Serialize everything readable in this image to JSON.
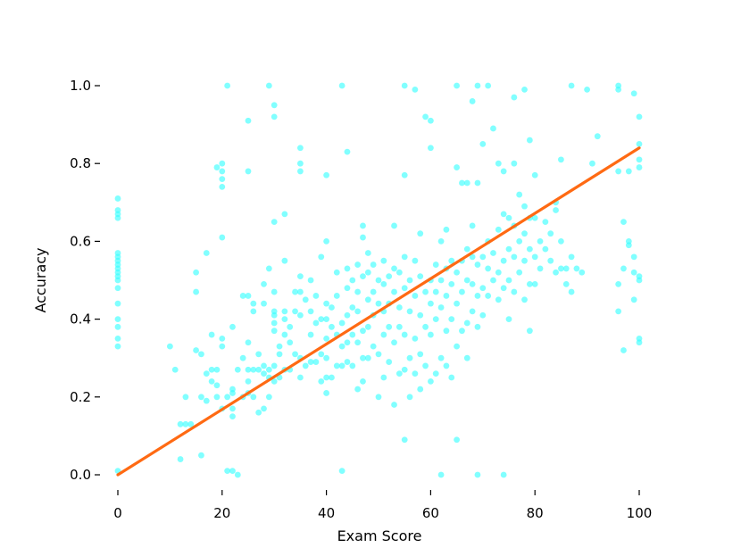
{
  "chart_data": {
    "type": "scatter",
    "xlabel": "Exam Score",
    "ylabel": "Accuracy",
    "xlim": [
      -3,
      103
    ],
    "ylim": [
      -0.05,
      1.05
    ],
    "xticks": [
      0,
      20,
      40,
      60,
      80,
      100
    ],
    "yticks": [
      0.0,
      0.2,
      0.4,
      0.6,
      0.8,
      1.0
    ],
    "xtick_labels": [
      "0",
      "20",
      "40",
      "60",
      "80",
      "100"
    ],
    "ytick_labels": [
      "0.0",
      "0.2",
      "0.4",
      "0.6",
      "0.8",
      "1.0"
    ],
    "grid": false,
    "point_color": "#33ffff",
    "line_color": "#ff6a13",
    "trend_line": {
      "x": [
        0,
        100
      ],
      "y": [
        0.0,
        0.84
      ]
    },
    "points": [
      [
        0,
        0.01
      ],
      [
        0,
        0.33
      ],
      [
        0,
        0.35
      ],
      [
        0,
        0.38
      ],
      [
        0,
        0.4
      ],
      [
        0,
        0.44
      ],
      [
        0,
        0.48
      ],
      [
        0,
        0.5
      ],
      [
        0,
        0.51
      ],
      [
        0,
        0.52
      ],
      [
        0,
        0.53
      ],
      [
        0,
        0.54
      ],
      [
        0,
        0.55
      ],
      [
        0,
        0.56
      ],
      [
        0,
        0.57
      ],
      [
        0,
        0.66
      ],
      [
        0,
        0.67
      ],
      [
        0,
        0.68
      ],
      [
        0,
        0.71
      ],
      [
        10,
        0.33
      ],
      [
        11,
        0.27
      ],
      [
        12,
        0.04
      ],
      [
        12,
        0.13
      ],
      [
        13,
        0.13
      ],
      [
        13,
        0.2
      ],
      [
        14,
        0.13
      ],
      [
        15,
        0.32
      ],
      [
        15,
        0.47
      ],
      [
        15,
        0.52
      ],
      [
        16,
        0.05
      ],
      [
        16,
        0.2
      ],
      [
        16,
        0.31
      ],
      [
        17,
        0.19
      ],
      [
        17,
        0.26
      ],
      [
        17,
        0.57
      ],
      [
        18,
        0.24
      ],
      [
        18,
        0.27
      ],
      [
        18,
        0.36
      ],
      [
        19,
        0.2
      ],
      [
        19,
        0.23
      ],
      [
        19,
        0.27
      ],
      [
        19,
        0.79
      ],
      [
        20,
        0.17
      ],
      [
        20,
        0.33
      ],
      [
        20,
        0.35
      ],
      [
        20,
        0.61
      ],
      [
        20,
        0.74
      ],
      [
        20,
        0.76
      ],
      [
        20,
        0.78
      ],
      [
        20,
        0.8
      ],
      [
        21,
        0.01
      ],
      [
        21,
        0.2
      ],
      [
        21,
        1.0
      ],
      [
        22,
        0.15
      ],
      [
        22,
        0.17
      ],
      [
        22,
        0.21
      ],
      [
        22,
        0.22
      ],
      [
        22,
        0.38
      ],
      [
        22,
        0.01
      ],
      [
        23,
        0.0
      ],
      [
        23,
        0.27
      ],
      [
        24,
        0.2
      ],
      [
        24,
        0.3
      ],
      [
        24,
        0.46
      ],
      [
        25,
        0.21
      ],
      [
        25,
        0.24
      ],
      [
        25,
        0.27
      ],
      [
        25,
        0.34
      ],
      [
        25,
        0.46
      ],
      [
        25,
        0.78
      ],
      [
        25,
        0.91
      ],
      [
        26,
        0.2
      ],
      [
        26,
        0.27
      ],
      [
        26,
        0.42
      ],
      [
        26,
        0.44
      ],
      [
        27,
        0.16
      ],
      [
        27,
        0.27
      ],
      [
        27,
        0.31
      ],
      [
        28,
        0.17
      ],
      [
        28,
        0.26
      ],
      [
        28,
        0.28
      ],
      [
        28,
        0.44
      ],
      [
        28,
        0.49
      ],
      [
        29,
        0.2
      ],
      [
        29,
        0.25
      ],
      [
        29,
        0.27
      ],
      [
        29,
        0.53
      ],
      [
        29,
        1.0
      ],
      [
        30,
        0.24
      ],
      [
        30,
        0.28
      ],
      [
        30,
        0.37
      ],
      [
        30,
        0.39
      ],
      [
        30,
        0.41
      ],
      [
        30,
        0.42
      ],
      [
        30,
        0.47
      ],
      [
        30,
        0.65
      ],
      [
        30,
        0.92
      ],
      [
        30,
        0.95
      ],
      [
        31,
        0.25
      ],
      [
        31,
        0.31
      ],
      [
        31,
        0.33
      ],
      [
        32,
        0.27
      ],
      [
        32,
        0.36
      ],
      [
        32,
        0.4
      ],
      [
        32,
        0.42
      ],
      [
        32,
        0.55
      ],
      [
        32,
        0.67
      ],
      [
        33,
        0.27
      ],
      [
        33,
        0.34
      ],
      [
        33,
        0.38
      ],
      [
        34,
        0.31
      ],
      [
        34,
        0.42
      ],
      [
        34,
        0.47
      ],
      [
        35,
        0.25
      ],
      [
        35,
        0.3
      ],
      [
        35,
        0.41
      ],
      [
        35,
        0.47
      ],
      [
        35,
        0.51
      ],
      [
        35,
        0.78
      ],
      [
        35,
        0.8
      ],
      [
        35,
        0.84
      ],
      [
        36,
        0.28
      ],
      [
        36,
        0.45
      ],
      [
        37,
        0.29
      ],
      [
        37,
        0.36
      ],
      [
        37,
        0.42
      ],
      [
        37,
        0.5
      ],
      [
        38,
        0.29
      ],
      [
        38,
        0.39
      ],
      [
        38,
        0.46
      ],
      [
        39,
        0.24
      ],
      [
        39,
        0.31
      ],
      [
        39,
        0.4
      ],
      [
        39,
        0.56
      ],
      [
        40,
        0.21
      ],
      [
        40,
        0.25
      ],
      [
        40,
        0.3
      ],
      [
        40,
        0.35
      ],
      [
        40,
        0.4
      ],
      [
        40,
        0.44
      ],
      [
        40,
        0.6
      ],
      [
        40,
        0.77
      ],
      [
        41,
        0.25
      ],
      [
        41,
        0.38
      ],
      [
        41,
        0.43
      ],
      [
        42,
        0.28
      ],
      [
        42,
        0.36
      ],
      [
        42,
        0.46
      ],
      [
        42,
        0.52
      ],
      [
        43,
        0.01
      ],
      [
        43,
        0.28
      ],
      [
        43,
        0.33
      ],
      [
        43,
        0.39
      ],
      [
        43,
        1.0
      ],
      [
        44,
        0.29
      ],
      [
        44,
        0.34
      ],
      [
        44,
        0.41
      ],
      [
        44,
        0.48
      ],
      [
        44,
        0.53
      ],
      [
        44,
        0.83
      ],
      [
        45,
        0.28
      ],
      [
        45,
        0.36
      ],
      [
        45,
        0.43
      ],
      [
        45,
        0.5
      ],
      [
        46,
        0.22
      ],
      [
        46,
        0.34
      ],
      [
        46,
        0.42
      ],
      [
        46,
        0.47
      ],
      [
        46,
        0.54
      ],
      [
        47,
        0.24
      ],
      [
        47,
        0.3
      ],
      [
        47,
        0.37
      ],
      [
        47,
        0.51
      ],
      [
        47,
        0.61
      ],
      [
        47,
        0.64
      ],
      [
        48,
        0.3
      ],
      [
        48,
        0.38
      ],
      [
        48,
        0.45
      ],
      [
        48,
        0.52
      ],
      [
        48,
        0.57
      ],
      [
        49,
        0.33
      ],
      [
        49,
        0.41
      ],
      [
        49,
        0.47
      ],
      [
        49,
        0.54
      ],
      [
        50,
        0.2
      ],
      [
        50,
        0.31
      ],
      [
        50,
        0.44
      ],
      [
        50,
        0.5
      ],
      [
        51,
        0.25
      ],
      [
        51,
        0.36
      ],
      [
        51,
        0.42
      ],
      [
        51,
        0.49
      ],
      [
        51,
        0.55
      ],
      [
        52,
        0.29
      ],
      [
        52,
        0.38
      ],
      [
        52,
        0.44
      ],
      [
        52,
        0.51
      ],
      [
        53,
        0.18
      ],
      [
        53,
        0.34
      ],
      [
        53,
        0.47
      ],
      [
        53,
        0.53
      ],
      [
        53,
        0.64
      ],
      [
        54,
        0.26
      ],
      [
        54,
        0.38
      ],
      [
        54,
        0.43
      ],
      [
        54,
        0.52
      ],
      [
        55,
        0.09
      ],
      [
        55,
        0.27
      ],
      [
        55,
        0.36
      ],
      [
        55,
        0.48
      ],
      [
        55,
        0.56
      ],
      [
        55,
        0.77
      ],
      [
        55,
        1.0
      ],
      [
        56,
        0.2
      ],
      [
        56,
        0.3
      ],
      [
        56,
        0.42
      ],
      [
        56,
        0.5
      ],
      [
        57,
        0.26
      ],
      [
        57,
        0.35
      ],
      [
        57,
        0.46
      ],
      [
        57,
        0.55
      ],
      [
        57,
        0.99
      ],
      [
        58,
        0.22
      ],
      [
        58,
        0.31
      ],
      [
        58,
        0.41
      ],
      [
        58,
        0.51
      ],
      [
        58,
        0.62
      ],
      [
        59,
        0.28
      ],
      [
        59,
        0.38
      ],
      [
        59,
        0.47
      ],
      [
        59,
        0.92
      ],
      [
        60,
        0.24
      ],
      [
        60,
        0.36
      ],
      [
        60,
        0.44
      ],
      [
        60,
        0.5
      ],
      [
        60,
        0.84
      ],
      [
        60,
        0.91
      ],
      [
        61,
        0.26
      ],
      [
        61,
        0.4
      ],
      [
        61,
        0.47
      ],
      [
        61,
        0.54
      ],
      [
        62,
        0.0
      ],
      [
        62,
        0.3
      ],
      [
        62,
        0.43
      ],
      [
        62,
        0.5
      ],
      [
        62,
        0.6
      ],
      [
        63,
        0.28
      ],
      [
        63,
        0.37
      ],
      [
        63,
        0.46
      ],
      [
        63,
        0.53
      ],
      [
        63,
        0.63
      ],
      [
        64,
        0.25
      ],
      [
        64,
        0.4
      ],
      [
        64,
        0.49
      ],
      [
        64,
        0.55
      ],
      [
        65,
        0.09
      ],
      [
        65,
        0.33
      ],
      [
        65,
        0.44
      ],
      [
        65,
        0.52
      ],
      [
        65,
        0.79
      ],
      [
        65,
        1.0
      ],
      [
        66,
        0.37
      ],
      [
        66,
        0.47
      ],
      [
        66,
        0.55
      ],
      [
        66,
        0.75
      ],
      [
        67,
        0.3
      ],
      [
        67,
        0.39
      ],
      [
        67,
        0.5
      ],
      [
        67,
        0.58
      ],
      [
        67,
        0.75
      ],
      [
        68,
        0.42
      ],
      [
        68,
        0.49
      ],
      [
        68,
        0.56
      ],
      [
        68,
        0.64
      ],
      [
        68,
        0.96
      ],
      [
        69,
        0.0
      ],
      [
        69,
        0.38
      ],
      [
        69,
        0.46
      ],
      [
        69,
        0.54
      ],
      [
        69,
        0.75
      ],
      [
        69,
        1.0
      ],
      [
        70,
        0.41
      ],
      [
        70,
        0.48
      ],
      [
        70,
        0.56
      ],
      [
        70,
        0.85
      ],
      [
        71,
        0.46
      ],
      [
        71,
        0.53
      ],
      [
        71,
        0.6
      ],
      [
        71,
        1.0
      ],
      [
        72,
        0.5
      ],
      [
        72,
        0.57
      ],
      [
        72,
        0.89
      ],
      [
        73,
        0.45
      ],
      [
        73,
        0.52
      ],
      [
        73,
        0.63
      ],
      [
        73,
        0.8
      ],
      [
        74,
        0.0
      ],
      [
        74,
        0.48
      ],
      [
        74,
        0.55
      ],
      [
        74,
        0.67
      ],
      [
        74,
        0.78
      ],
      [
        75,
        0.4
      ],
      [
        75,
        0.5
      ],
      [
        75,
        0.58
      ],
      [
        75,
        0.66
      ],
      [
        76,
        0.47
      ],
      [
        76,
        0.56
      ],
      [
        76,
        0.64
      ],
      [
        76,
        0.8
      ],
      [
        76,
        0.97
      ],
      [
        77,
        0.52
      ],
      [
        77,
        0.6
      ],
      [
        77,
        0.72
      ],
      [
        78,
        0.45
      ],
      [
        78,
        0.55
      ],
      [
        78,
        0.62
      ],
      [
        78,
        0.69
      ],
      [
        78,
        0.99
      ],
      [
        79,
        0.37
      ],
      [
        79,
        0.49
      ],
      [
        79,
        0.58
      ],
      [
        79,
        0.66
      ],
      [
        79,
        0.86
      ],
      [
        80,
        0.49
      ],
      [
        80,
        0.56
      ],
      [
        80,
        0.66
      ],
      [
        80,
        0.77
      ],
      [
        81,
        0.53
      ],
      [
        81,
        0.6
      ],
      [
        82,
        0.58
      ],
      [
        82,
        0.65
      ],
      [
        83,
        0.55
      ],
      [
        83,
        0.62
      ],
      [
        84,
        0.52
      ],
      [
        84,
        0.68
      ],
      [
        84,
        0.7
      ],
      [
        85,
        0.53
      ],
      [
        85,
        0.6
      ],
      [
        85,
        0.81
      ],
      [
        86,
        0.49
      ],
      [
        86,
        0.53
      ],
      [
        87,
        0.47
      ],
      [
        87,
        0.56
      ],
      [
        87,
        1.0
      ],
      [
        88,
        0.53
      ],
      [
        89,
        0.52
      ],
      [
        90,
        0.99
      ],
      [
        91,
        0.8
      ],
      [
        92,
        0.87
      ],
      [
        96,
        0.42
      ],
      [
        96,
        0.49
      ],
      [
        96,
        0.78
      ],
      [
        96,
        0.99
      ],
      [
        96,
        1.0
      ],
      [
        97,
        0.32
      ],
      [
        97,
        0.53
      ],
      [
        97,
        0.65
      ],
      [
        98,
        0.59
      ],
      [
        98,
        0.6
      ],
      [
        98,
        0.78
      ],
      [
        99,
        0.45
      ],
      [
        99,
        0.52
      ],
      [
        99,
        0.56
      ],
      [
        99,
        0.98
      ],
      [
        100,
        0.34
      ],
      [
        100,
        0.35
      ],
      [
        100,
        0.5
      ],
      [
        100,
        0.51
      ],
      [
        100,
        0.79
      ],
      [
        100,
        0.81
      ],
      [
        100,
        0.85
      ],
      [
        100,
        0.92
      ]
    ]
  }
}
